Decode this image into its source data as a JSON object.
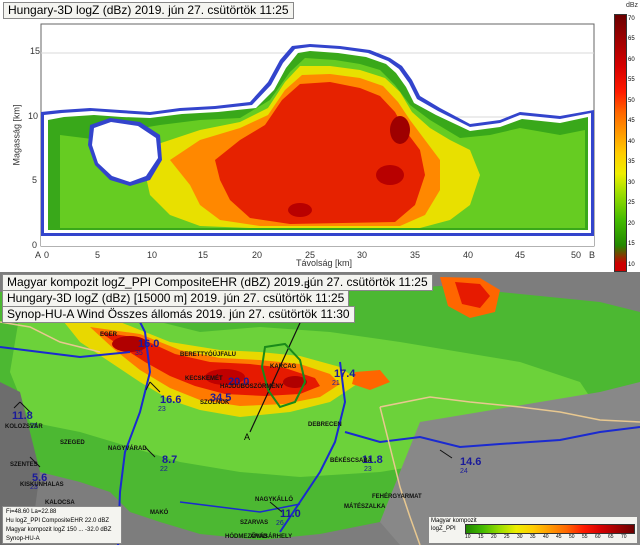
{
  "top_panel": {
    "title": "Hungary-3D logZ (dBz) 2019. jún 27. csütörtök 11:25",
    "y_axis_label": "Magasság [km]",
    "x_axis_label": "Távolság [km]",
    "x_ticks": [
      "0",
      "5",
      "10",
      "15",
      "20",
      "25",
      "30",
      "35",
      "40",
      "45",
      "50"
    ],
    "y_ticks": [
      "0",
      "5",
      "10",
      "15"
    ],
    "end_label_left": "A",
    "end_label_right": "B"
  },
  "colorbar": {
    "unit": "dBz",
    "ticks": [
      "70",
      "65",
      "60",
      "55",
      "50",
      "45",
      "40",
      "35",
      "30",
      "25",
      "20",
      "15",
      "10"
    ],
    "colors": [
      "#7a0000",
      "#9e0000",
      "#c40000",
      "#e60000",
      "#ff2a00",
      "#ff6600",
      "#ff9900",
      "#ffcc00",
      "#ffff00",
      "#99dd00",
      "#44bb00",
      "#228800",
      "#ff0000"
    ]
  },
  "map_panel": {
    "header_lines": [
      "Magyar kompozit logZ_PPI CompositeEHR (dBZ) 2019. jún 27. csütörtök 11:25",
      "Hungary-3D logZ (dBz) [15000 m] 2019. jún 27. csütörtök 11:25",
      "Synop-HU-A Wind Összes állomás 2019. jún 27. csütörtök 11:30"
    ],
    "section_labels": [
      "A",
      "B"
    ],
    "stations": [
      {
        "value": "16.0",
        "small": "35"
      },
      {
        "value": "20.0",
        "small": ""
      },
      {
        "value": "16.6",
        "small": "23"
      },
      {
        "value": "34.5",
        "small": ""
      },
      {
        "value": "17.4",
        "small": "21"
      },
      {
        "value": "11.8",
        "small": "25"
      },
      {
        "value": "8.7",
        "small": "22"
      },
      {
        "value": "5.6",
        "small": "23"
      },
      {
        "value": "11.8",
        "small": "23"
      },
      {
        "value": "14.6",
        "small": "24"
      },
      {
        "value": "11.0",
        "small": "26"
      }
    ],
    "town_labels": [
      "EGER",
      "KECSKEMÉT",
      "SZOLNOK",
      "DEBRECEN",
      "SZEGED",
      "BÉKÉSCSABA",
      "NAGYVÁRAD",
      "KOLOZSVÁR",
      "SZENTES",
      "MAKÓ",
      "SZARVAS",
      "HÓDMEZŐVÁSÁRHELY",
      "ARAD",
      "FEHÉRGYARMAT",
      "MÁTÉSZALKA",
      "HAJDÚBÖSZÖRMÉNY",
      "KARCAG",
      "BERETTYÓÚJFALU",
      "KISKUNHALAS",
      "KALOCSA",
      "NAGYKÁLLÓ"
    ],
    "info_box": {
      "line1": "Fi=48.60 La=22.88",
      "line2": "Hu logZ_PPI CompositeEHR   22.0 dBZ",
      "line3": "Magyar kompozit logZ 150 ... -32.0 dBZ",
      "line4": "Synop-HU-A"
    },
    "legend": {
      "title": "Magyar kompozit",
      "subtitle": "logZ_PPI",
      "ticks": [
        "10",
        "15",
        "20",
        "25",
        "30",
        "35",
        "40",
        "45",
        "50",
        "55",
        "60",
        "65",
        "70"
      ]
    }
  }
}
